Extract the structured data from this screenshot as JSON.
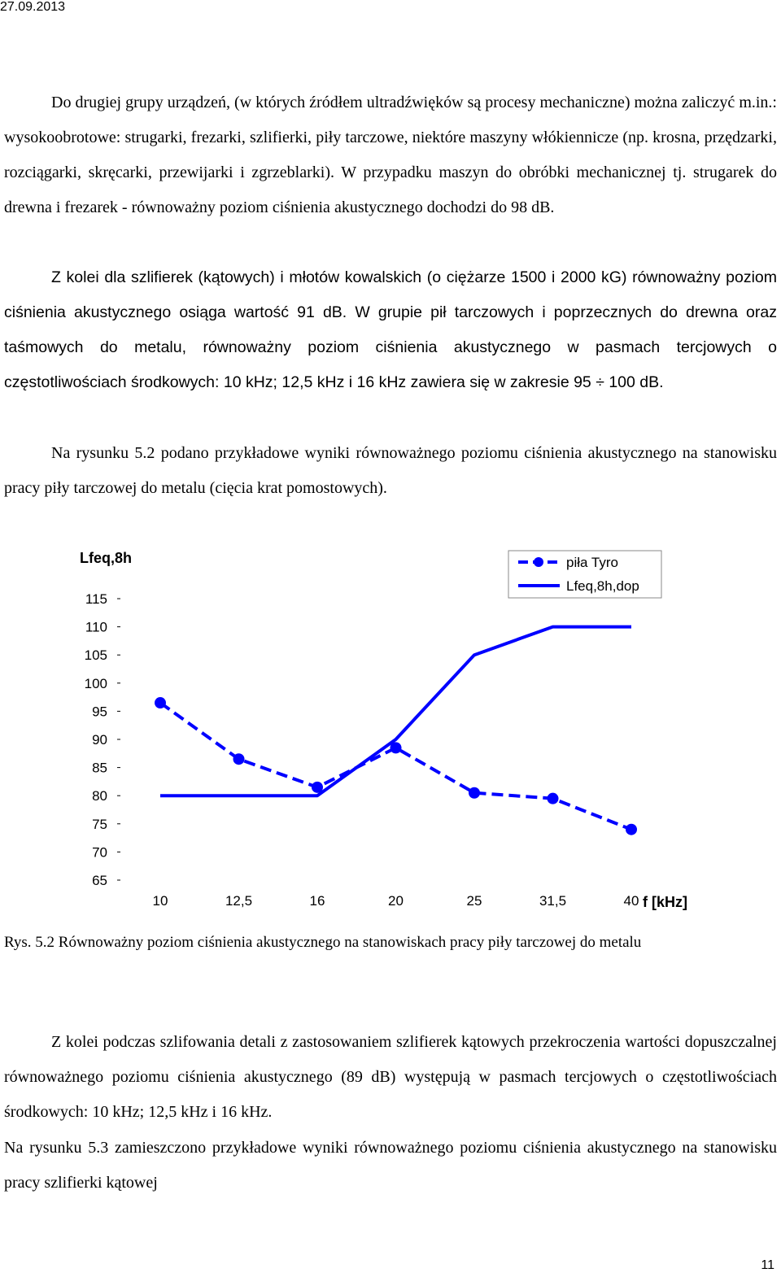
{
  "header": {
    "date": "27.09.2013"
  },
  "paragraphs": {
    "p1": "Do drugiej grupy urządzeń, (w których źródłem ultradźwięków są procesy mechaniczne) można zaliczyć m.in.: wysokoobrotowe: strugarki, frezarki, szlifierki, piły tarczowe, niektóre maszyny włókiennicze (np. krosna, przędzarki, rozciągarki, skręcarki, przewijarki i zgrzeblarki). W przypadku maszyn do obróbki mechanicznej tj. strugarek do drewna i frezarek - równoważny poziom ciśnienia akustycznego dochodzi do 98 dB.",
    "p2": "Z kolei dla szlifierek (kątowych) i młotów kowalskich (o ciężarze 1500 i 2000 kG) równoważny poziom ciśnienia akustycznego osiąga wartość 91 dB. W grupie pił tarczowych i poprzecznych do drewna oraz taśmowych do metalu, równoważny poziom ciśnienia akustycznego w pasmach tercjowych o częstotliwościach środkowych: 10 kHz; 12,5 kHz i 16 kHz zawiera się w zakresie 95 ÷ 100 dB.",
    "p3": "Na rysunku 5.2 podano przykładowe wyniki równoważnego poziomu ciśnienia akustycznego na stanowisku pracy piły tarczowej do metalu (cięcia krat pomostowych).",
    "caption": "Rys. 5.2 Równoważny poziom ciśnienia akustycznego na stanowiskach pracy piły tarczowej do metalu",
    "p4": "Z kolei podczas szlifowania detali z zastosowaniem szlifierek kątowych przekroczenia wartości dopuszczalnej równoważnego poziomu ciśnienia akustycznego (89 dB) występują w pasmach tercjowych o częstotliwościach środkowych: 10 kHz; 12,5 kHz i 16 kHz.",
    "p5": "Na rysunku 5.3 zamieszczono przykładowe wyniki równoważnego poziomu ciśnienia akustycznego na stanowisku pracy szlifierki kątowej"
  },
  "footer": {
    "page_number": "11"
  },
  "chart_data": {
    "type": "line",
    "ylabel": "Lfeq,8h",
    "xlabel": "f [kHz]",
    "categories": [
      "10",
      "12,5",
      "16",
      "20",
      "25",
      "31,5",
      "40"
    ],
    "yticks": [
      "115",
      "110",
      "105",
      "100",
      "95",
      "90",
      "85",
      "80",
      "75",
      "70",
      "65"
    ],
    "ylim": [
      65,
      115
    ],
    "legend_position": "top-right",
    "grid": false,
    "series": [
      {
        "name": "piła Tyro",
        "style": "dashed-markers",
        "color": "#0000ff",
        "values": [
          96.5,
          86.5,
          81.5,
          88.5,
          80.5,
          79.5,
          74
        ]
      },
      {
        "name": "Lfeq,8h,dop",
        "style": "solid",
        "color": "#0000ff",
        "values": [
          80,
          80,
          80,
          90,
          105,
          110,
          110
        ]
      }
    ]
  }
}
